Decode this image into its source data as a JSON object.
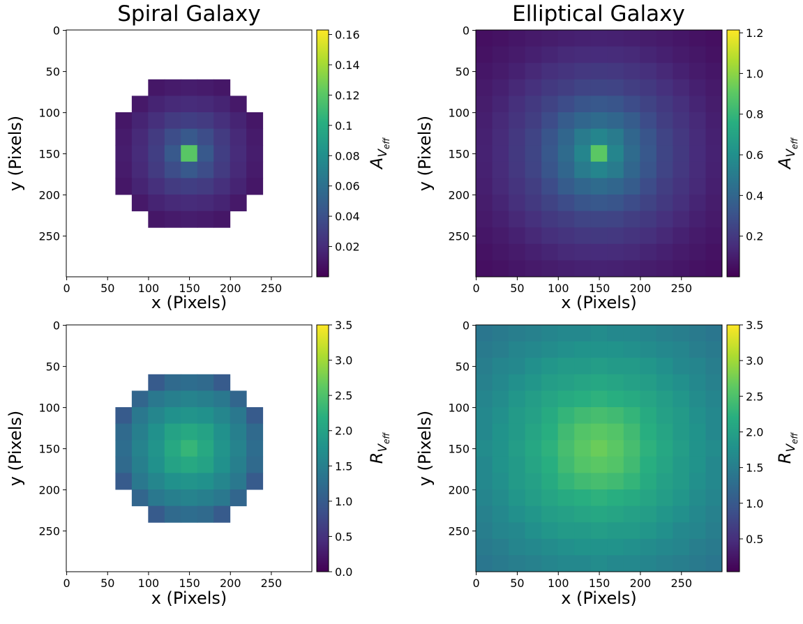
{
  "chart_data": [
    {
      "type": "heatmap",
      "title": "Spiral Galaxy",
      "xlabel": "x (Pixels)",
      "ylabel": "y (Pixels)",
      "xlim": [
        -0.5,
        299.5
      ],
      "ylim": [
        299.5,
        -0.5
      ],
      "xticks": [
        0,
        50,
        100,
        150,
        200,
        250
      ],
      "yticks": [
        0,
        50,
        100,
        150,
        200,
        250
      ],
      "colormap": "viridis",
      "values": [
        [
          null,
          null,
          null,
          null,
          null,
          null,
          null,
          null,
          null,
          null,
          null,
          null,
          null,
          null,
          null
        ],
        [
          null,
          null,
          null,
          null,
          null,
          null,
          null,
          null,
          null,
          null,
          null,
          null,
          null,
          null,
          null
        ],
        [
          null,
          null,
          null,
          null,
          null,
          null,
          null,
          null,
          null,
          null,
          null,
          null,
          null,
          null,
          null
        ],
        [
          null,
          null,
          null,
          null,
          null,
          0.01,
          0.012,
          0.013,
          0.012,
          0.01,
          null,
          null,
          null,
          null,
          null
        ],
        [
          null,
          null,
          null,
          null,
          0.011,
          0.016,
          0.019,
          0.02,
          0.019,
          0.016,
          0.011,
          null,
          null,
          null,
          null
        ],
        [
          null,
          null,
          null,
          0.01,
          0.016,
          0.022,
          0.028,
          0.03,
          0.028,
          0.022,
          0.016,
          0.01,
          null,
          null,
          null
        ],
        [
          null,
          null,
          null,
          0.012,
          0.019,
          0.028,
          0.038,
          0.045,
          0.038,
          0.028,
          0.019,
          0.012,
          null,
          null,
          null
        ],
        [
          null,
          null,
          null,
          0.013,
          0.02,
          0.03,
          0.045,
          0.12,
          0.045,
          0.03,
          0.02,
          0.013,
          null,
          null,
          null
        ],
        [
          null,
          null,
          null,
          0.012,
          0.019,
          0.028,
          0.038,
          0.045,
          0.038,
          0.028,
          0.019,
          0.012,
          null,
          null,
          null
        ],
        [
          null,
          null,
          null,
          0.01,
          0.016,
          0.022,
          0.028,
          0.03,
          0.028,
          0.022,
          0.016,
          0.01,
          null,
          null,
          null
        ],
        [
          null,
          null,
          null,
          null,
          0.011,
          0.016,
          0.019,
          0.02,
          0.019,
          0.016,
          0.011,
          null,
          null,
          null,
          null
        ],
        [
          null,
          null,
          null,
          null,
          null,
          0.01,
          0.012,
          0.013,
          0.012,
          0.01,
          null,
          null,
          null,
          null,
          null
        ],
        [
          null,
          null,
          null,
          null,
          null,
          null,
          null,
          null,
          null,
          null,
          null,
          null,
          null,
          null,
          null
        ],
        [
          null,
          null,
          null,
          null,
          null,
          null,
          null,
          null,
          null,
          null,
          null,
          null,
          null,
          null,
          null
        ],
        [
          null,
          null,
          null,
          null,
          null,
          null,
          null,
          null,
          null,
          null,
          null,
          null,
          null,
          null,
          null
        ]
      ],
      "colorbar": {
        "label": {
          "text": "A",
          "sub": "V",
          "subsub": "eff"
        },
        "lim": [
          0,
          0.163
        ],
        "ticks": [
          0.02,
          0.04,
          0.06,
          0.08,
          0.1,
          0.12,
          0.14,
          0.16
        ]
      }
    },
    {
      "type": "heatmap",
      "title": "Elliptical Galaxy",
      "xlabel": "x (Pixels)",
      "ylabel": "y (Pixels)",
      "xlim": [
        -0.5,
        299.5
      ],
      "ylim": [
        299.5,
        -0.5
      ],
      "xticks": [
        0,
        50,
        100,
        150,
        200,
        250
      ],
      "yticks": [
        0,
        50,
        100,
        150,
        200,
        250
      ],
      "colormap": "viridis",
      "values": [
        [
          0.05,
          0.06,
          0.072,
          0.085,
          0.095,
          0.105,
          0.112,
          0.115,
          0.112,
          0.105,
          0.095,
          0.085,
          0.072,
          0.06,
          0.05
        ],
        [
          0.06,
          0.075,
          0.09,
          0.108,
          0.125,
          0.14,
          0.148,
          0.15,
          0.148,
          0.14,
          0.125,
          0.108,
          0.09,
          0.075,
          0.06
        ],
        [
          0.072,
          0.09,
          0.112,
          0.137,
          0.165,
          0.18,
          0.195,
          0.2,
          0.195,
          0.18,
          0.165,
          0.137,
          0.112,
          0.09,
          0.072
        ],
        [
          0.085,
          0.108,
          0.137,
          0.17,
          0.2,
          0.22,
          0.245,
          0.25,
          0.245,
          0.22,
          0.2,
          0.17,
          0.137,
          0.108,
          0.085
        ],
        [
          0.095,
          0.125,
          0.165,
          0.2,
          0.24,
          0.28,
          0.32,
          0.33,
          0.32,
          0.28,
          0.24,
          0.2,
          0.165,
          0.125,
          0.095
        ],
        [
          0.105,
          0.14,
          0.18,
          0.22,
          0.28,
          0.35,
          0.4,
          0.42,
          0.4,
          0.35,
          0.28,
          0.22,
          0.18,
          0.14,
          0.105
        ],
        [
          0.112,
          0.148,
          0.195,
          0.245,
          0.32,
          0.4,
          0.5,
          0.55,
          0.5,
          0.4,
          0.32,
          0.245,
          0.195,
          0.148,
          0.112
        ],
        [
          0.115,
          0.15,
          0.2,
          0.25,
          0.33,
          0.42,
          0.55,
          0.9,
          0.55,
          0.42,
          0.33,
          0.25,
          0.2,
          0.15,
          0.115
        ],
        [
          0.112,
          0.148,
          0.195,
          0.245,
          0.32,
          0.4,
          0.5,
          0.55,
          0.5,
          0.4,
          0.32,
          0.245,
          0.195,
          0.148,
          0.112
        ],
        [
          0.105,
          0.14,
          0.18,
          0.22,
          0.28,
          0.35,
          0.4,
          0.42,
          0.4,
          0.35,
          0.28,
          0.22,
          0.18,
          0.14,
          0.105
        ],
        [
          0.095,
          0.125,
          0.165,
          0.2,
          0.24,
          0.28,
          0.32,
          0.33,
          0.32,
          0.28,
          0.24,
          0.2,
          0.165,
          0.125,
          0.095
        ],
        [
          0.085,
          0.108,
          0.137,
          0.17,
          0.2,
          0.22,
          0.245,
          0.25,
          0.245,
          0.22,
          0.2,
          0.17,
          0.137,
          0.108,
          0.085
        ],
        [
          0.072,
          0.09,
          0.112,
          0.137,
          0.165,
          0.18,
          0.195,
          0.2,
          0.195,
          0.18,
          0.165,
          0.137,
          0.112,
          0.09,
          0.072
        ],
        [
          0.06,
          0.075,
          0.09,
          0.108,
          0.125,
          0.14,
          0.148,
          0.15,
          0.148,
          0.14,
          0.125,
          0.108,
          0.09,
          0.075,
          0.06
        ],
        [
          0.05,
          0.06,
          0.072,
          0.085,
          0.095,
          0.105,
          0.112,
          0.115,
          0.112,
          0.105,
          0.095,
          0.085,
          0.072,
          0.06,
          0.05
        ]
      ],
      "colorbar": {
        "label": {
          "text": "A",
          "sub": "V",
          "subsub": "eff"
        },
        "lim": [
          0,
          1.214
        ],
        "ticks": [
          0.2,
          0.4,
          0.6,
          0.8,
          {
            "value": 1,
            "label": "1.0"
          },
          1.2
        ]
      }
    },
    {
      "type": "heatmap",
      "xlabel": "x (Pixels)",
      "ylabel": "y (Pixels)",
      "xlim": [
        -0.5,
        299.5
      ],
      "ylim": [
        299.5,
        -0.5
      ],
      "xticks": [
        0,
        50,
        100,
        150,
        200,
        250
      ],
      "yticks": [
        0,
        50,
        100,
        150,
        200,
        250
      ],
      "colormap": "viridis",
      "values": [
        [
          null,
          null,
          null,
          null,
          null,
          null,
          null,
          null,
          null,
          null,
          null,
          null,
          null,
          null,
          null
        ],
        [
          null,
          null,
          null,
          null,
          null,
          null,
          null,
          null,
          null,
          null,
          null,
          null,
          null,
          null,
          null
        ],
        [
          null,
          null,
          null,
          null,
          null,
          null,
          null,
          null,
          null,
          null,
          null,
          null,
          null,
          null,
          null
        ],
        [
          null,
          null,
          null,
          null,
          null,
          1.0,
          1.2,
          1.25,
          1.2,
          1.0,
          null,
          null,
          null,
          null,
          null
        ],
        [
          null,
          null,
          null,
          null,
          1.15,
          1.4,
          1.5,
          1.55,
          1.5,
          1.4,
          1.15,
          null,
          null,
          null,
          null
        ],
        [
          null,
          null,
          null,
          1.0,
          1.4,
          1.6,
          1.75,
          1.8,
          1.75,
          1.6,
          1.4,
          1.0,
          null,
          null,
          null
        ],
        [
          null,
          null,
          null,
          1.2,
          1.5,
          1.75,
          2.0,
          2.1,
          2.0,
          1.75,
          1.5,
          1.2,
          null,
          null,
          null
        ],
        [
          null,
          null,
          null,
          1.25,
          1.55,
          1.8,
          2.1,
          2.3,
          2.1,
          1.8,
          1.55,
          1.25,
          null,
          null,
          null
        ],
        [
          null,
          null,
          null,
          1.2,
          1.5,
          1.75,
          2.0,
          2.1,
          2.0,
          1.75,
          1.5,
          1.2,
          null,
          null,
          null
        ],
        [
          null,
          null,
          null,
          1.0,
          1.4,
          1.6,
          1.75,
          1.8,
          1.75,
          1.6,
          1.4,
          1.0,
          null,
          null,
          null
        ],
        [
          null,
          null,
          null,
          null,
          1.15,
          1.4,
          1.5,
          1.55,
          1.5,
          1.4,
          1.15,
          null,
          null,
          null,
          null
        ],
        [
          null,
          null,
          null,
          null,
          null,
          1.0,
          1.2,
          1.25,
          1.2,
          1.0,
          null,
          null,
          null,
          null,
          null
        ],
        [
          null,
          null,
          null,
          null,
          null,
          null,
          null,
          null,
          null,
          null,
          null,
          null,
          null,
          null,
          null
        ],
        [
          null,
          null,
          null,
          null,
          null,
          null,
          null,
          null,
          null,
          null,
          null,
          null,
          null,
          null,
          null
        ],
        [
          null,
          null,
          null,
          null,
          null,
          null,
          null,
          null,
          null,
          null,
          null,
          null,
          null,
          null,
          null
        ]
      ],
      "colorbar": {
        "label": {
          "text": "R",
          "sub": "V",
          "subsub": "eff"
        },
        "lim": [
          0,
          3.5
        ],
        "ticks": [
          {
            "value": 0,
            "label": "0.0"
          },
          0.5,
          {
            "value": 1,
            "label": "1.0"
          },
          1.5,
          {
            "value": 2,
            "label": "2.0"
          },
          2.5,
          {
            "value": 3,
            "label": "3.0"
          },
          3.5
        ]
      }
    },
    {
      "type": "heatmap",
      "xlabel": "x (Pixels)",
      "ylabel": "y (Pixels)",
      "xlim": [
        -0.5,
        299.5
      ],
      "ylim": [
        299.5,
        -0.5
      ],
      "xticks": [
        0,
        50,
        100,
        150,
        200,
        250
      ],
      "yticks": [
        0,
        50,
        100,
        150,
        200,
        250
      ],
      "colormap": "viridis",
      "values": [
        [
          1.4,
          1.45,
          1.5,
          1.55,
          1.6,
          1.65,
          1.65,
          1.7,
          1.65,
          1.65,
          1.6,
          1.55,
          1.5,
          1.45,
          1.4
        ],
        [
          1.45,
          1.5,
          1.6,
          1.65,
          1.7,
          1.75,
          1.8,
          1.8,
          1.8,
          1.75,
          1.7,
          1.65,
          1.6,
          1.5,
          1.45
        ],
        [
          1.5,
          1.6,
          1.65,
          1.75,
          1.85,
          1.9,
          1.9,
          1.95,
          1.9,
          1.9,
          1.85,
          1.75,
          1.65,
          1.6,
          1.5
        ],
        [
          1.55,
          1.65,
          1.75,
          1.85,
          1.95,
          2.0,
          2.05,
          2.1,
          2.05,
          2.0,
          1.95,
          1.85,
          1.75,
          1.65,
          1.55
        ],
        [
          1.6,
          1.7,
          1.85,
          1.95,
          2.05,
          2.15,
          2.2,
          2.25,
          2.2,
          2.15,
          2.05,
          1.95,
          1.85,
          1.7,
          1.6
        ],
        [
          1.65,
          1.75,
          1.9,
          2.0,
          2.15,
          2.3,
          2.4,
          2.45,
          2.4,
          2.3,
          2.15,
          2.0,
          1.9,
          1.75,
          1.65
        ],
        [
          1.65,
          1.8,
          1.9,
          2.05,
          2.2,
          2.4,
          2.55,
          2.6,
          2.55,
          2.4,
          2.2,
          2.05,
          1.9,
          1.8,
          1.65
        ],
        [
          1.7,
          1.8,
          1.95,
          2.1,
          2.25,
          2.45,
          2.6,
          2.7,
          2.6,
          2.45,
          2.25,
          2.1,
          1.95,
          1.8,
          1.7
        ],
        [
          1.65,
          1.8,
          1.9,
          2.05,
          2.2,
          2.4,
          2.55,
          2.6,
          2.55,
          2.4,
          2.2,
          2.05,
          1.9,
          1.8,
          1.65
        ],
        [
          1.65,
          1.75,
          1.9,
          2.0,
          2.15,
          2.3,
          2.4,
          2.45,
          2.4,
          2.3,
          2.15,
          2.0,
          1.9,
          1.75,
          1.65
        ],
        [
          1.6,
          1.7,
          1.85,
          1.95,
          2.05,
          2.15,
          2.2,
          2.25,
          2.2,
          2.15,
          2.05,
          1.95,
          1.85,
          1.7,
          1.6
        ],
        [
          1.55,
          1.65,
          1.75,
          1.85,
          1.95,
          2.0,
          2.05,
          2.1,
          2.05,
          2.0,
          1.95,
          1.85,
          1.75,
          1.65,
          1.55
        ],
        [
          1.5,
          1.6,
          1.65,
          1.75,
          1.85,
          1.9,
          1.9,
          1.95,
          1.9,
          1.9,
          1.85,
          1.75,
          1.65,
          1.6,
          1.5
        ],
        [
          1.45,
          1.5,
          1.6,
          1.65,
          1.7,
          1.75,
          1.8,
          1.8,
          1.8,
          1.75,
          1.7,
          1.65,
          1.6,
          1.5,
          1.45
        ],
        [
          1.4,
          1.45,
          1.5,
          1.55,
          1.6,
          1.65,
          1.65,
          1.7,
          1.65,
          1.65,
          1.6,
          1.55,
          1.5,
          1.45,
          1.4
        ]
      ],
      "colorbar": {
        "label": {
          "text": "R",
          "sub": "V",
          "subsub": "eff"
        },
        "lim": [
          0.04,
          3.5
        ],
        "ticks": [
          0.5,
          {
            "value": 1,
            "label": "1.0"
          },
          1.5,
          {
            "value": 2,
            "label": "2.0"
          },
          2.5,
          {
            "value": 3,
            "label": "3.0"
          },
          3.5
        ]
      }
    }
  ]
}
